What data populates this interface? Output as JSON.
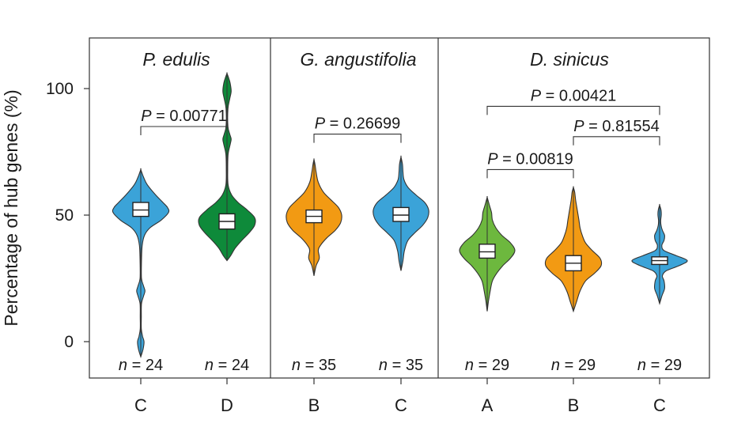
{
  "chart_data": {
    "type": "violin",
    "ylabel": "Percentage of hub genes (%)",
    "ylim": [
      -12,
      120
    ],
    "yticks": [
      "0",
      "50",
      "100"
    ],
    "ytick_values": [
      0,
      50,
      100
    ],
    "groups": [
      {
        "title": "P. edulis",
        "violins": [
          {
            "category": "C",
            "n_label": "n = 24",
            "color": "#3ba3d8",
            "median": 52,
            "q1": 49.5,
            "q3": 55,
            "whisker_low": 40,
            "whisker_high": 63,
            "min": -6,
            "max": 68,
            "profile": [
              [
                -6,
                0
              ],
              [
                -3,
                2.5
              ],
              [
                0,
                3.5
              ],
              [
                2,
                2
              ],
              [
                5,
                0.6
              ],
              [
                10,
                0.6
              ],
              [
                15,
                0.8
              ],
              [
                18,
                3
              ],
              [
                20,
                4.5
              ],
              [
                22,
                3
              ],
              [
                25,
                0.8
              ],
              [
                32,
                0.8
              ],
              [
                38,
                1.5
              ],
              [
                42,
                4
              ],
              [
                45,
                10
              ],
              [
                48,
                22
              ],
              [
                51,
                30
              ],
              [
                53,
                29
              ],
              [
                55,
                24
              ],
              [
                58,
                16
              ],
              [
                62,
                7
              ],
              [
                65,
                3
              ],
              [
                68,
                0
              ]
            ]
          },
          {
            "category": "D",
            "n_label": "n = 24",
            "color": "#0e8a3a",
            "median": 47.5,
            "q1": 44.5,
            "q3": 50.5,
            "whisker_low": 36,
            "whisker_high": 59,
            "min": 32,
            "max": 106,
            "profile": [
              [
                32,
                0
              ],
              [
                34,
                4
              ],
              [
                37,
                9
              ],
              [
                40,
                16
              ],
              [
                43,
                24
              ],
              [
                46,
                30
              ],
              [
                49,
                30
              ],
              [
                52,
                22
              ],
              [
                55,
                12
              ],
              [
                58,
                5
              ],
              [
                62,
                1.2
              ],
              [
                68,
                0.8
              ],
              [
                74,
                1.2
              ],
              [
                78,
                3.5
              ],
              [
                80,
                4.5
              ],
              [
                82,
                3
              ],
              [
                85,
                1
              ],
              [
                92,
                1
              ],
              [
                96,
                3
              ],
              [
                99,
                4.5
              ],
              [
                102,
                3.5
              ],
              [
                104,
                2
              ],
              [
                106,
                0
              ]
            ]
          }
        ]
      },
      {
        "title": "G. angustifolia",
        "violins": [
          {
            "category": "B",
            "n_label": "n = 35",
            "color": "#f29a13",
            "median": 49.5,
            "q1": 47,
            "q3": 52,
            "whisker_low": 40,
            "whisker_high": 60,
            "min": 26,
            "max": 72,
            "profile": [
              [
                26,
                0
              ],
              [
                30,
                2
              ],
              [
                33,
                5
              ],
              [
                36,
                4
              ],
              [
                38,
                6
              ],
              [
                41,
                12
              ],
              [
                44,
                20
              ],
              [
                47,
                25
              ],
              [
                50,
                26
              ],
              [
                53,
                23
              ],
              [
                56,
                16
              ],
              [
                59,
                9
              ],
              [
                63,
                4
              ],
              [
                67,
                2
              ],
              [
                70,
                1
              ],
              [
                72,
                0
              ]
            ]
          },
          {
            "category": "C",
            "n_label": "n = 35",
            "color": "#3ba3d8",
            "median": 50,
            "q1": 47.5,
            "q3": 53,
            "whisker_low": 38,
            "whisker_high": 62,
            "min": 28,
            "max": 73,
            "profile": [
              [
                28,
                0
              ],
              [
                32,
                2
              ],
              [
                36,
                3.5
              ],
              [
                40,
                7
              ],
              [
                43,
                14
              ],
              [
                46,
                22
              ],
              [
                49,
                27
              ],
              [
                52,
                28
              ],
              [
                55,
                24
              ],
              [
                58,
                15
              ],
              [
                61,
                7
              ],
              [
                64,
                3
              ],
              [
                67,
                2
              ],
              [
                70,
                1.5
              ],
              [
                73,
                0
              ]
            ]
          }
        ]
      },
      {
        "title": "D. sinicus",
        "violins": [
          {
            "category": "A",
            "n_label": "n = 29",
            "color": "#6db83e",
            "median": 35.5,
            "q1": 33,
            "q3": 38.5,
            "whisker_low": 24,
            "whisker_high": 48,
            "min": 12,
            "max": 57,
            "profile": [
              [
                12,
                0
              ],
              [
                16,
                1.5
              ],
              [
                20,
                3.5
              ],
              [
                24,
                6
              ],
              [
                27,
                11
              ],
              [
                30,
                18
              ],
              [
                33,
                27
              ],
              [
                36,
                32
              ],
              [
                39,
                27
              ],
              [
                42,
                17
              ],
              [
                45,
                10
              ],
              [
                48,
                6
              ],
              [
                51,
                5
              ],
              [
                54,
                2.5
              ],
              [
                57,
                0
              ]
            ]
          },
          {
            "category": "B",
            "n_label": "n = 29",
            "color": "#f29a13",
            "median": 31,
            "q1": 28,
            "q3": 34,
            "whisker_low": 18,
            "whisker_high": 44,
            "min": 12,
            "max": 61,
            "profile": [
              [
                12,
                0
              ],
              [
                16,
                3
              ],
              [
                20,
                6
              ],
              [
                24,
                11
              ],
              [
                27,
                19
              ],
              [
                30,
                25
              ],
              [
                33,
                24
              ],
              [
                36,
                17
              ],
              [
                39,
                11
              ],
              [
                42,
                8
              ],
              [
                45,
                6
              ],
              [
                48,
                5
              ],
              [
                52,
                3.5
              ],
              [
                56,
                2
              ],
              [
                59,
                1.2
              ],
              [
                61,
                0
              ]
            ]
          },
          {
            "category": "C",
            "n_label": "n = 29",
            "color": "#3ba3d8",
            "median": 32,
            "q1": 30.5,
            "q3": 33.5,
            "whisker_low": 25,
            "whisker_high": 40,
            "min": 15,
            "max": 54,
            "profile": [
              [
                15,
                0
              ],
              [
                18,
                4
              ],
              [
                21,
                9
              ],
              [
                24,
                8
              ],
              [
                26,
                5
              ],
              [
                28,
                12
              ],
              [
                30,
                35
              ],
              [
                32,
                50
              ],
              [
                34,
                30
              ],
              [
                36,
                8
              ],
              [
                38,
                4
              ],
              [
                40,
                8
              ],
              [
                42,
                9
              ],
              [
                44,
                5
              ],
              [
                46,
                2.5
              ],
              [
                48,
                2
              ],
              [
                50,
                3
              ],
              [
                52,
                2.5
              ],
              [
                54,
                0
              ]
            ]
          }
        ]
      }
    ],
    "annotations": [
      {
        "text": "P = 0.00771",
        "group": 0,
        "from": 0,
        "to": 1,
        "y": 85
      },
      {
        "text": "P = 0.26699",
        "group": 1,
        "from": 0,
        "to": 1,
        "y": 82
      },
      {
        "text": "P = 0.00819",
        "group": 2,
        "from": 0,
        "to": 1,
        "y": 68
      },
      {
        "text": "P = 0.81554",
        "group": 2,
        "from": 1,
        "to": 2,
        "y": 81
      },
      {
        "text": "P = 0.00421",
        "group": 2,
        "from": 0,
        "to": 2,
        "y": 93
      }
    ]
  }
}
